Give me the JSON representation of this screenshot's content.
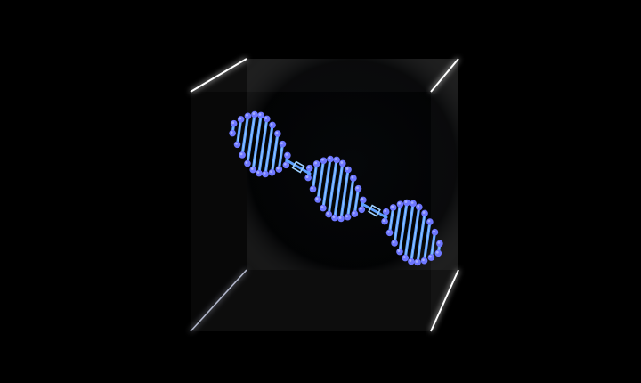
{
  "scene": {
    "background_color": "#000000",
    "cube": {
      "edge_color": "#ffffff",
      "glow_color": "#dfe6ff",
      "face_fill": "#0b0f14"
    },
    "helix": {
      "rung_color": "#5ea0ff",
      "rung_highlight": "#9fd0ff",
      "node_color": "#6e77ff",
      "node_highlight": "#a9b0ff",
      "segments": 3
    }
  }
}
